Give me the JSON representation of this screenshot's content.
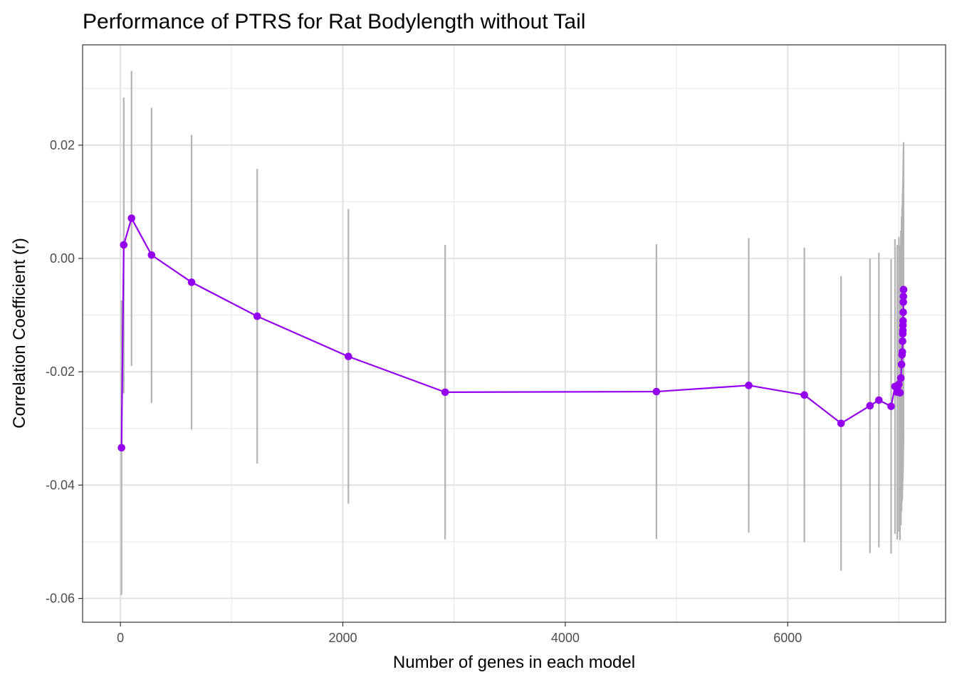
{
  "chart_data": {
    "type": "line",
    "title": "Performance of PTRS for Rat Bodylength without Tail",
    "xlabel": "Number of genes in each model",
    "ylabel": "Correlation Coefficient (r)",
    "xlim": [
      -340,
      7420
    ],
    "ylim": [
      -0.0642,
      0.0377
    ],
    "x_ticks": [
      0,
      2000,
      4000,
      6000
    ],
    "x_tick_labels": [
      "0",
      "2000",
      "4000",
      "6000"
    ],
    "y_ticks": [
      -0.06,
      -0.04,
      -0.02,
      0.0,
      0.02
    ],
    "y_tick_labels": [
      "-0.06",
      "-0.04",
      "-0.02",
      "0.00",
      "0.02"
    ],
    "grid": true,
    "legend": "none",
    "series": [
      {
        "x": [
          10,
          30,
          100,
          280,
          640,
          1230,
          2050,
          2920,
          4820,
          5650,
          6150,
          6480,
          6740,
          6820,
          6930,
          6965,
          6985,
          7000,
          7010,
          7018,
          7024,
          7028,
          7031,
          7033,
          7035,
          7036,
          7037,
          7038,
          7039,
          7040,
          7041,
          7042
        ],
        "y": [
          -0.0334,
          0.0024,
          0.0071,
          0.0006,
          -0.0042,
          -0.0102,
          -0.0173,
          -0.0236,
          -0.0235,
          -0.0224,
          -0.0241,
          -0.0291,
          -0.026,
          -0.025,
          -0.0261,
          -0.0226,
          -0.0236,
          -0.0222,
          -0.0237,
          -0.0211,
          -0.0187,
          -0.017,
          -0.0165,
          -0.0146,
          -0.0133,
          -0.0127,
          -0.0118,
          -0.011,
          -0.0095,
          -0.0077,
          -0.0067,
          -0.0055
        ],
        "ci_low": [
          -0.0594,
          -0.0238,
          -0.019,
          -0.0255,
          -0.0302,
          -0.0362,
          -0.0433,
          -0.0496,
          -0.0495,
          -0.0484,
          -0.0501,
          -0.0551,
          -0.052,
          -0.051,
          -0.0521,
          -0.0486,
          -0.0496,
          -0.0482,
          -0.0497,
          -0.0471,
          -0.0447,
          -0.043,
          -0.0425,
          -0.0406,
          -0.0393,
          -0.0387,
          -0.0378,
          -0.037,
          -0.0355,
          -0.0337,
          -0.0327,
          -0.0315
        ],
        "ci_high": [
          -0.0074,
          0.0284,
          0.0331,
          0.0266,
          0.0218,
          0.0158,
          0.0087,
          0.0024,
          0.0025,
          0.0036,
          0.0019,
          -0.0031,
          0.0,
          0.001,
          -0.0001,
          0.0034,
          0.0024,
          0.0038,
          0.0023,
          0.0049,
          0.0073,
          0.009,
          0.0095,
          0.0114,
          0.0127,
          0.0133,
          0.0142,
          0.015,
          0.0165,
          0.0183,
          0.0193,
          0.0205
        ],
        "color": "#9400ee",
        "errorbar_color": "#b3b3b3"
      }
    ]
  }
}
